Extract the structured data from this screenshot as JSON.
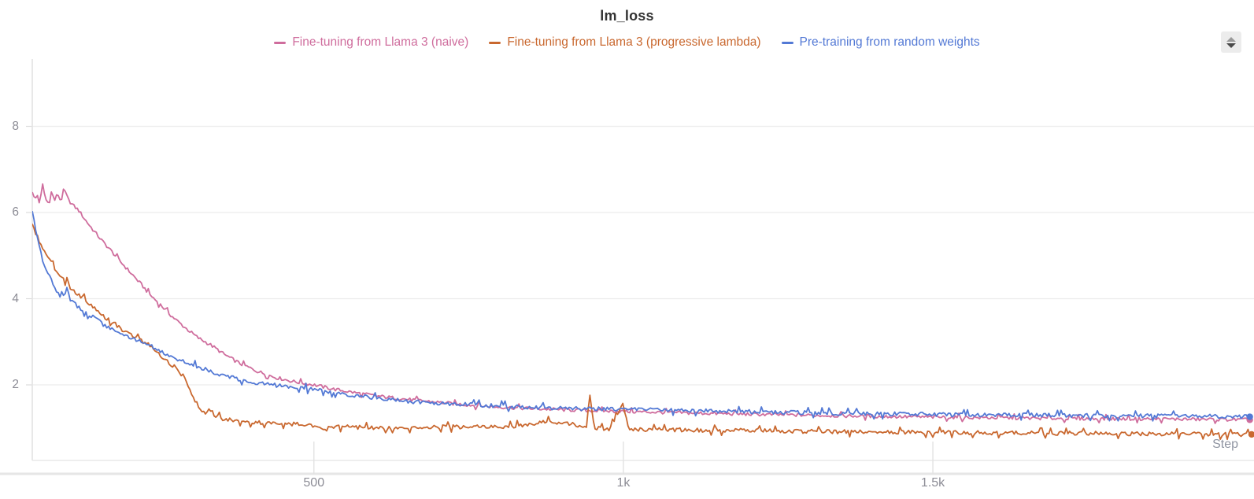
{
  "title": "lm_loss",
  "legend": {
    "position": "top",
    "items": [
      {
        "label": "Fine-tuning from Llama 3 (naive)",
        "color": "#cf6d9d"
      },
      {
        "label": "Fine-tuning from Llama 3 (progressive lambda)",
        "color": "#c9682f"
      },
      {
        "label": "Pre-training from random weights",
        "color": "#5379d5"
      }
    ]
  },
  "axes": {
    "y": {
      "tick_labels": [
        "2",
        "4",
        "6",
        "8"
      ]
    },
    "x": {
      "tick_labels": [
        "500",
        "1k",
        "1.5k"
      ],
      "label": "Step"
    }
  },
  "controls": {
    "stepper": {
      "up": "triangle-up-icon",
      "down": "triangle-down-icon"
    }
  },
  "colors": {
    "title": "#333333",
    "tick_text": "#8d8d96",
    "grid": "#ececec",
    "spine": "#e3e3e3",
    "divider": "#e6e6e6"
  },
  "chart_data": {
    "type": "line",
    "title": "lm_loss",
    "xlabel": "Step",
    "ylabel": "",
    "grid": "horizontal",
    "legend_position": "top",
    "xlim": [
      45,
      2015
    ],
    "ylim": [
      0.25,
      9.55
    ],
    "x_ticks": [
      500,
      1000,
      1500
    ],
    "x_tick_labels": [
      "500",
      "1k",
      "1.5k"
    ],
    "y_ticks": [
      2,
      4,
      6,
      8
    ],
    "y_tick_labels": [
      "2",
      "4",
      "6",
      "8"
    ],
    "series": [
      {
        "name": "Fine-tuning from Llama 3 (naive)",
        "color": "#cf6d9d",
        "noise": 0.04,
        "points": [
          [
            45,
            6.5
          ],
          [
            49,
            6.28
          ],
          [
            53,
            6.42
          ],
          [
            57,
            6.2
          ],
          [
            62,
            6.66
          ],
          [
            66,
            6.32
          ],
          [
            71,
            6.22
          ],
          [
            76,
            6.48
          ],
          [
            81,
            6.28
          ],
          [
            86,
            6.44
          ],
          [
            91,
            6.26
          ],
          [
            97,
            6.52
          ],
          [
            103,
            6.3
          ],
          [
            110,
            6.18
          ],
          [
            120,
            6.05
          ],
          [
            130,
            5.84
          ],
          [
            143,
            5.6
          ],
          [
            158,
            5.34
          ],
          [
            172,
            5.12
          ],
          [
            188,
            4.85
          ],
          [
            204,
            4.6
          ],
          [
            220,
            4.35
          ],
          [
            236,
            4.08
          ],
          [
            252,
            3.86
          ],
          [
            270,
            3.6
          ],
          [
            290,
            3.35
          ],
          [
            312,
            3.1
          ],
          [
            334,
            2.92
          ],
          [
            356,
            2.7
          ],
          [
            380,
            2.5
          ],
          [
            408,
            2.32
          ],
          [
            436,
            2.18
          ],
          [
            466,
            2.08
          ],
          [
            500,
            2.0
          ],
          [
            532,
            1.9
          ],
          [
            566,
            1.82
          ],
          [
            602,
            1.74
          ],
          [
            660,
            1.65
          ],
          [
            720,
            1.57
          ],
          [
            780,
            1.5
          ],
          [
            850,
            1.45
          ],
          [
            930,
            1.41
          ],
          [
            1010,
            1.38
          ],
          [
            1100,
            1.35
          ],
          [
            1200,
            1.32
          ],
          [
            1320,
            1.29
          ],
          [
            1450,
            1.26
          ],
          [
            1580,
            1.24
          ],
          [
            1720,
            1.22
          ],
          [
            1860,
            1.21
          ],
          [
            2012,
            1.19
          ]
        ]
      },
      {
        "name": "Fine-tuning from Llama 3 (progressive lambda)",
        "color": "#c9682f",
        "noise": 0.05,
        "points": [
          [
            45,
            5.72
          ],
          [
            52,
            5.48
          ],
          [
            59,
            5.24
          ],
          [
            67,
            5.02
          ],
          [
            75,
            4.84
          ],
          [
            83,
            4.66
          ],
          [
            92,
            4.5
          ],
          [
            100,
            4.4
          ],
          [
            108,
            4.22
          ],
          [
            118,
            4.12
          ],
          [
            130,
            3.98
          ],
          [
            142,
            3.82
          ],
          [
            155,
            3.65
          ],
          [
            168,
            3.52
          ],
          [
            180,
            3.4
          ],
          [
            193,
            3.26
          ],
          [
            206,
            3.14
          ],
          [
            220,
            3.03
          ],
          [
            232,
            2.94
          ],
          [
            248,
            2.72
          ],
          [
            262,
            2.55
          ],
          [
            276,
            2.4
          ],
          [
            288,
            2.22
          ],
          [
            298,
            1.95
          ],
          [
            308,
            1.65
          ],
          [
            318,
            1.4
          ],
          [
            326,
            1.3
          ],
          [
            332,
            1.45
          ],
          [
            340,
            1.28
          ],
          [
            352,
            1.22
          ],
          [
            370,
            1.18
          ],
          [
            395,
            1.14
          ],
          [
            425,
            1.12
          ],
          [
            455,
            1.1
          ],
          [
            490,
            1.08
          ],
          [
            516,
            0.94
          ],
          [
            530,
            1.04
          ],
          [
            560,
            1.02
          ],
          [
            600,
            1.01
          ],
          [
            650,
            1.0
          ],
          [
            700,
            1.02
          ],
          [
            756,
            1.03
          ],
          [
            820,
            1.04
          ],
          [
            880,
            1.15
          ],
          [
            905,
            1.12
          ],
          [
            928,
            1.06
          ],
          [
            940,
            1.02
          ],
          [
            946,
            1.78
          ],
          [
            953,
            1.0
          ],
          [
            978,
            0.97
          ],
          [
            1000,
            1.56
          ],
          [
            1008,
            0.96
          ],
          [
            1060,
            0.96
          ],
          [
            1130,
            0.95
          ],
          [
            1210,
            0.94
          ],
          [
            1290,
            0.92
          ],
          [
            1380,
            0.91
          ],
          [
            1480,
            0.9
          ],
          [
            1590,
            0.89
          ],
          [
            1700,
            0.88
          ],
          [
            1820,
            0.87
          ],
          [
            1930,
            0.86
          ],
          [
            2015,
            0.85
          ]
        ]
      },
      {
        "name": "Pre-training from random weights",
        "color": "#5379d5",
        "noise": 0.05,
        "points": [
          [
            45,
            6.06
          ],
          [
            50,
            5.62
          ],
          [
            56,
            5.24
          ],
          [
            62,
            4.9
          ],
          [
            69,
            4.62
          ],
          [
            76,
            4.42
          ],
          [
            83,
            4.22
          ],
          [
            89,
            4.08
          ],
          [
            95,
            4.02
          ],
          [
            101,
            4.28
          ],
          [
            107,
            3.96
          ],
          [
            116,
            3.85
          ],
          [
            128,
            3.72
          ],
          [
            142,
            3.58
          ],
          [
            158,
            3.42
          ],
          [
            175,
            3.28
          ],
          [
            192,
            3.14
          ],
          [
            210,
            3.05
          ],
          [
            228,
            2.98
          ],
          [
            248,
            2.82
          ],
          [
            268,
            2.68
          ],
          [
            288,
            2.55
          ],
          [
            308,
            2.45
          ],
          [
            330,
            2.33
          ],
          [
            355,
            2.22
          ],
          [
            382,
            2.12
          ],
          [
            412,
            2.04
          ],
          [
            444,
            1.98
          ],
          [
            478,
            1.94
          ],
          [
            510,
            1.88
          ],
          [
            545,
            1.8
          ],
          [
            580,
            1.73
          ],
          [
            620,
            1.66
          ],
          [
            660,
            1.61
          ],
          [
            705,
            1.57
          ],
          [
            756,
            1.54
          ],
          [
            820,
            1.5
          ],
          [
            890,
            1.46
          ],
          [
            960,
            1.44
          ],
          [
            1030,
            1.42
          ],
          [
            1110,
            1.4
          ],
          [
            1190,
            1.38
          ],
          [
            1270,
            1.36
          ],
          [
            1360,
            1.34
          ],
          [
            1450,
            1.32
          ],
          [
            1540,
            1.31
          ],
          [
            1640,
            1.3
          ],
          [
            1740,
            1.29
          ],
          [
            1850,
            1.28
          ],
          [
            1950,
            1.27
          ],
          [
            2012,
            1.26
          ]
        ]
      }
    ]
  }
}
